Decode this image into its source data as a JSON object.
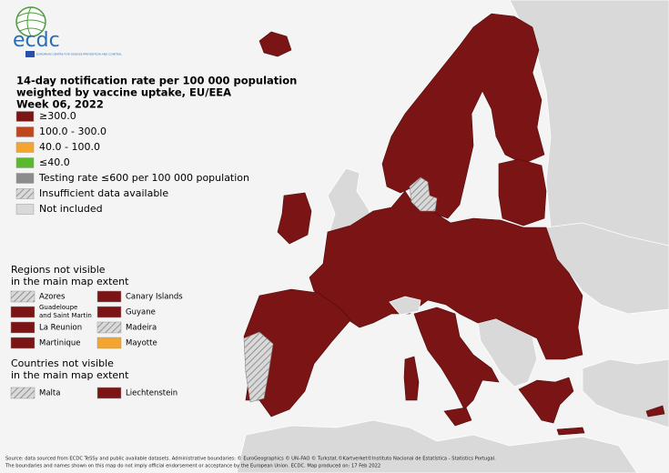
{
  "logo": {
    "text": "ecdc",
    "caption": "EUROPEAN CENTRE FOR DISEASE PREVENTION AND CONTROL"
  },
  "title": [
    "14-day notification rate per 100 000 population",
    "weighted by vaccine uptake, EU/EEA",
    "Week 06, 2022"
  ],
  "legend": [
    {
      "label": "≥300.0",
      "fill": "#7b1414"
    },
    {
      "label": "100.0 - 300.0",
      "fill": "#c0461f"
    },
    {
      "label": "40.0 - 100.0",
      "fill": "#f2a531"
    },
    {
      "label": "≤40.0",
      "fill": "#5cb82e"
    },
    {
      "label": "Testing rate ≤600 per 100 000 population",
      "fill": "#8c8c8c"
    },
    {
      "label": "Insufficient data available",
      "fill": "hatched"
    },
    {
      "label": "Not included",
      "fill": "#d9d9d9"
    }
  ],
  "regions": {
    "title": [
      "Regions not visible",
      "in the main map extent"
    ],
    "items": [
      {
        "label": "Azores",
        "fill": "hatched"
      },
      {
        "label": "Canary Islands",
        "fill": "#7b1414"
      },
      {
        "label": [
          "Guadeloupe",
          "and Saint Martin"
        ],
        "fill": "#7b1414"
      },
      {
        "label": "Guyane",
        "fill": "#7b1414"
      },
      {
        "label": "La Reunion",
        "fill": "#7b1414"
      },
      {
        "label": "Madeira",
        "fill": "hatched"
      },
      {
        "label": "Martinique",
        "fill": "#7b1414"
      },
      {
        "label": "Mayotte",
        "fill": "#f2a531"
      }
    ]
  },
  "countries": {
    "title": [
      "Countries not visible",
      "in the main map extent"
    ],
    "items": [
      {
        "label": "Malta",
        "fill": "hatched"
      },
      {
        "label": "Liechtenstein",
        "fill": "#7b1414"
      }
    ]
  },
  "footer": [
    "Source: data sourced from ECDC TeSSy and public available datasets. Administrative boundaries: © EuroGeographics © UN–FAO © Turkstat.©Kartverket©Instituto Nacional de Estatística - Statistics Portugal.",
    "The boundaries and names shown on this map do not imply official endorsement or acceptance by the European Union. ECDC. Map produced on: 17 Feb 2022"
  ]
}
